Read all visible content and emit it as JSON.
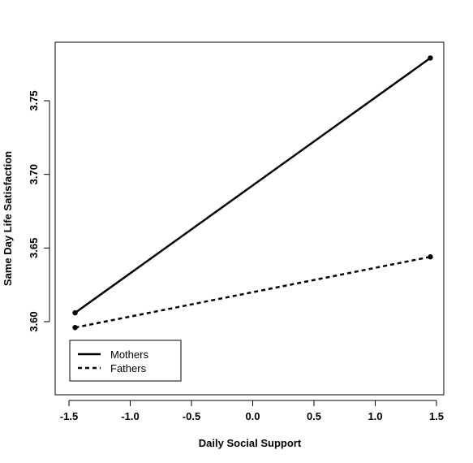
{
  "chart_data": {
    "type": "line",
    "xlabel": "Daily Social Support",
    "ylabel": "Same Day Life Satisfaction",
    "xlim": [
      -1.5,
      1.5
    ],
    "ylim": [
      3.55,
      3.785
    ],
    "x_ticks": [
      "-1.5",
      "-1.0",
      "-0.5",
      "0.0",
      "0.5",
      "1.0",
      "1.5"
    ],
    "x_tick_values": [
      -1.5,
      -1.0,
      -0.5,
      0.0,
      0.5,
      1.0,
      1.5
    ],
    "y_ticks": [
      "3.60",
      "3.65",
      "3.70",
      "3.75"
    ],
    "y_tick_values": [
      3.6,
      3.65,
      3.7,
      3.75
    ],
    "grid": false,
    "legend_position": "bottom-left",
    "series": [
      {
        "name": "Mothers",
        "line_style": "solid",
        "color": "#000000",
        "x": [
          -1.45,
          1.45
        ],
        "y": [
          3.606,
          3.779
        ]
      },
      {
        "name": "Fathers",
        "line_style": "dashed",
        "color": "#000000",
        "x": [
          -1.45,
          1.45
        ],
        "y": [
          3.596,
          3.644
        ]
      }
    ]
  }
}
